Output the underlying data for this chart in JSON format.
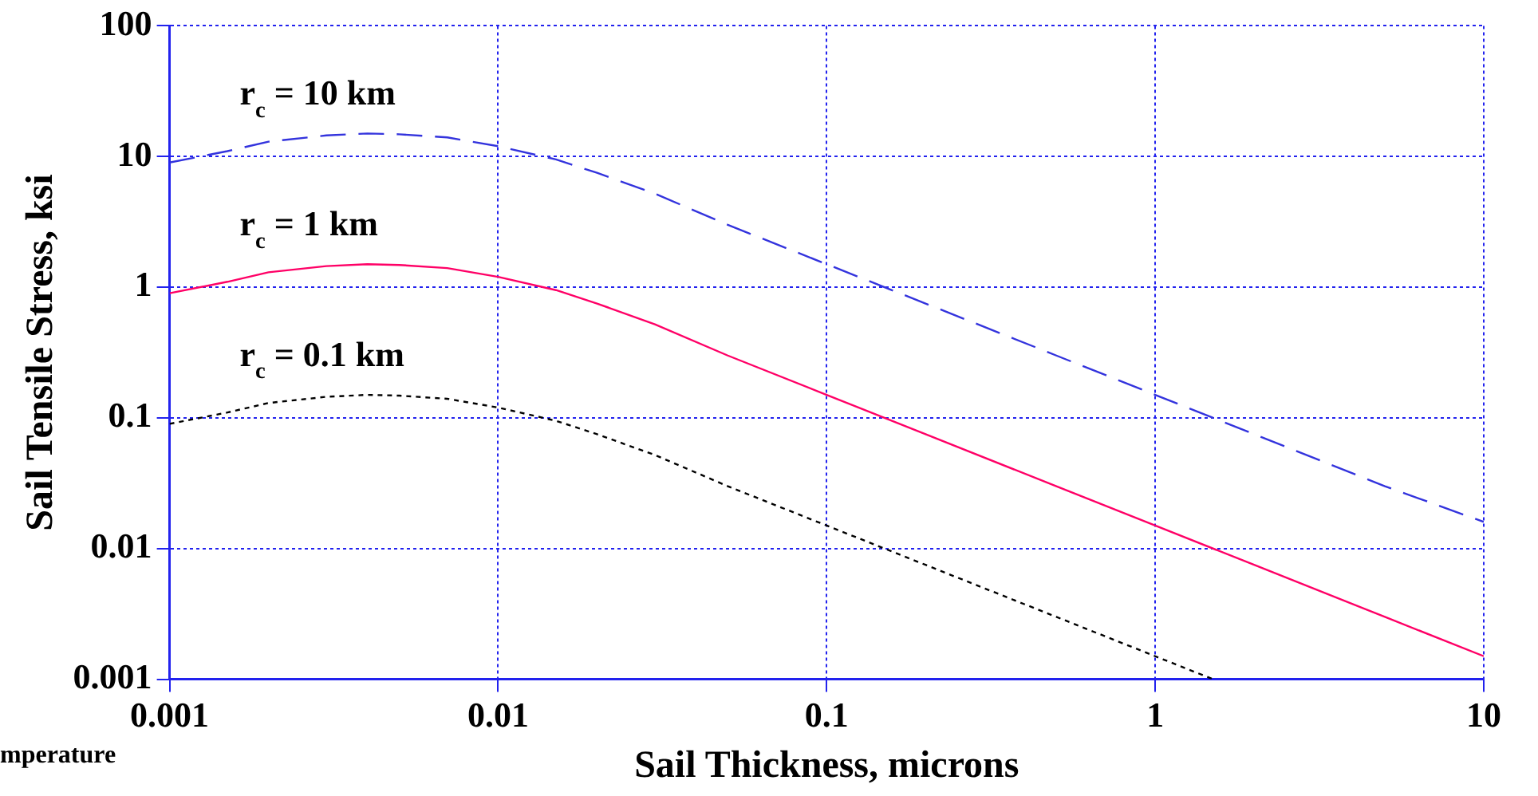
{
  "chart_data": {
    "type": "line",
    "xlabel": "Sail Thickness, microns",
    "ylabel": "Sail Tensile Stress, ksi",
    "log": "xy",
    "grid": true,
    "legend": false,
    "marker": "none",
    "xlim": [
      0.001,
      10
    ],
    "xticks": [
      0.001,
      0.01,
      0.1,
      1,
      10
    ],
    "ylim": [
      0.001,
      100
    ],
    "yticks": [
      0.001,
      0.01,
      0.1,
      1,
      10,
      100
    ],
    "x": [
      0.001,
      0.0015,
      0.002,
      0.003,
      0.004,
      0.005,
      0.007,
      0.01,
      0.015,
      0.02,
      0.03,
      0.05,
      0.1,
      0.2,
      0.5,
      1,
      2,
      5,
      10
    ],
    "series": [
      {
        "name": "r$_{c}$ = 10 km",
        "color": "#3333dd",
        "line_style": "dashed",
        "values": [
          9,
          11,
          13,
          14.5,
          15,
          14.8,
          14,
          12,
          9.5,
          7.5,
          5.2,
          3,
          1.5,
          0.75,
          0.3,
          0.15,
          0.075,
          0.03,
          0.016
        ]
      },
      {
        "name": "r$_{c}$ = 1 km",
        "color": "#ff0066",
        "line_style": "solid",
        "values": [
          0.9,
          1.1,
          1.3,
          1.45,
          1.5,
          1.48,
          1.4,
          1.2,
          0.95,
          0.75,
          0.52,
          0.3,
          0.15,
          0.075,
          0.03,
          0.015,
          0.0075,
          0.003,
          0.0015
        ]
      },
      {
        "name": "r$_{c}$ = 0.1 km",
        "color": "#000000",
        "line_style": "dotted",
        "x": [
          0.001,
          0.0015,
          0.002,
          0.003,
          0.004,
          0.005,
          0.007,
          0.01,
          0.015,
          0.02,
          0.03,
          0.05,
          0.1,
          0.2,
          0.5,
          1,
          1.5
        ],
        "values": [
          0.09,
          0.11,
          0.13,
          0.145,
          0.15,
          0.148,
          0.14,
          0.12,
          0.095,
          0.075,
          0.052,
          0.03,
          0.015,
          0.0075,
          0.003,
          0.0015,
          0.001
        ]
      }
    ],
    "annotations": [
      "mperature"
    ]
  }
}
